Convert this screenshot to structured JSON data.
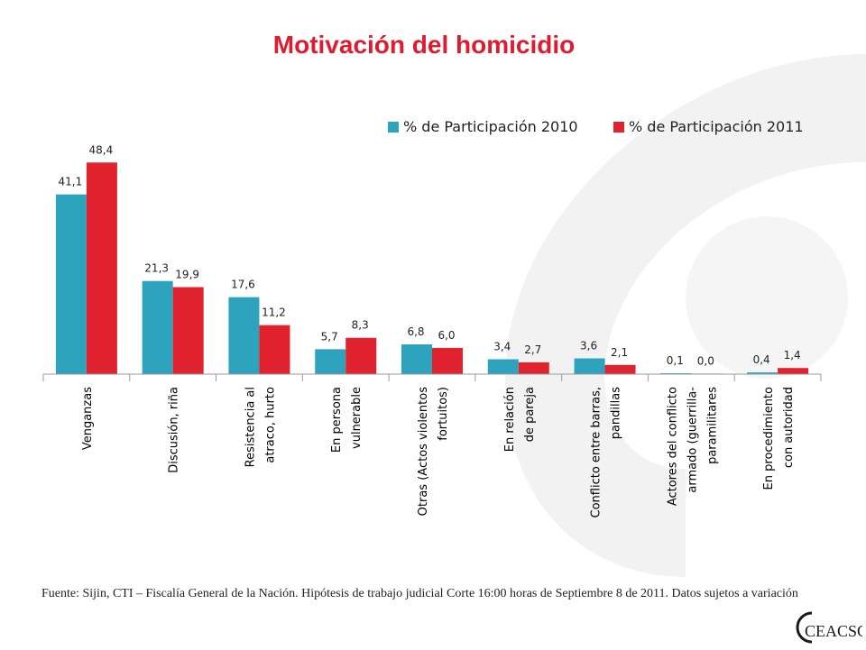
{
  "title": "Motivación del homicidio",
  "source_note": "Fuente: Sijin,  CTI – Fiscalía General de la Nación.  Hipótesis de trabajo judicial  Corte 16:00 horas de  Septiembre 8 de  2011.  Datos sujetos a variación",
  "logo_text": "CEACSC",
  "colors": {
    "series_2010": "#2ea3bd",
    "series_2011": "#e0232f",
    "title": "#e01b2f",
    "watermark": "#f3f3f3"
  },
  "chart_data": {
    "type": "bar",
    "title": "Motivación del homicidio",
    "legend_position": "top-right",
    "grid": false,
    "ylim": [
      0,
      50
    ],
    "categories": [
      [
        "Venganzas"
      ],
      [
        "Discusión, riña"
      ],
      [
        "Resistencia al",
        "atraco, hurto"
      ],
      [
        "En persona",
        "vulnerable"
      ],
      [
        "Otras (Actos violentos",
        "fortuitos)"
      ],
      [
        "En relación",
        "de pareja"
      ],
      [
        "Conflicto entre barras,",
        "pandillas"
      ],
      [
        "Actores del conflicto",
        "armado (guerrilla-",
        "paramilitares"
      ],
      [
        "En procedimiento",
        "con autoridad"
      ]
    ],
    "series": [
      {
        "name": "% de Participación 2010",
        "values": [
          41.1,
          21.3,
          17.6,
          5.7,
          6.8,
          3.4,
          3.6,
          0.1,
          0.4
        ],
        "labels": [
          "41,1",
          "21,3",
          "17,6",
          "5,7",
          "6,8",
          "3,4",
          "3,6",
          "0,1",
          "0,4"
        ]
      },
      {
        "name": "% de Participación 2011",
        "values": [
          48.4,
          19.9,
          11.2,
          8.3,
          6.0,
          2.7,
          2.1,
          0.0,
          1.4
        ],
        "labels": [
          "48,4",
          "19,9",
          "11,2",
          "8,3",
          "6,0",
          "2,7",
          "2,1",
          "0,0",
          "1,4"
        ]
      }
    ]
  }
}
